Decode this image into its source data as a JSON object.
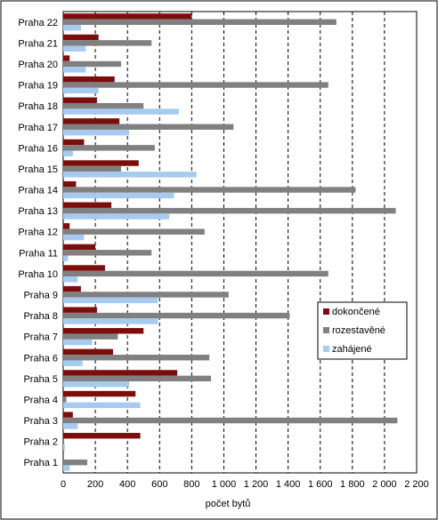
{
  "chart_data": {
    "type": "bar",
    "orientation": "horizontal",
    "title": "",
    "xlabel": "počet bytů",
    "ylabel": "",
    "xlim": [
      0,
      2200
    ],
    "xticks": [
      0,
      200,
      400,
      600,
      800,
      1000,
      1200,
      1400,
      1600,
      1800,
      2000,
      2200
    ],
    "xtick_labels": [
      "0",
      "200",
      "400",
      "600",
      "800",
      "1 000",
      "1 200",
      "1 400",
      "1 600",
      "1 800",
      "2 000",
      "2 200"
    ],
    "grid": "vertical dashed",
    "legend_position": "right",
    "categories": [
      "Praha 1",
      "Praha 2",
      "Praha 3",
      "Praha 4",
      "Praha 5",
      "Praha 6",
      "Praha 7",
      "Praha 8",
      "Praha 9",
      "Praha 10",
      "Praha 11",
      "Praha 12",
      "Praha 13",
      "Praha 14",
      "Praha 15",
      "Praha 16",
      "Praha 17",
      "Praha 18",
      "Praha 19",
      "Praha 20",
      "Praha 21",
      "Praha 22"
    ],
    "series": [
      {
        "name": "dokončené",
        "color": "#7B0D0D",
        "values": [
          0,
          480,
          60,
          450,
          710,
          310,
          500,
          210,
          110,
          260,
          200,
          40,
          300,
          80,
          470,
          130,
          350,
          210,
          320,
          40,
          220,
          800
        ]
      },
      {
        "name": "rozestavěné",
        "color": "#808080",
        "values": [
          150,
          0,
          2080,
          20,
          920,
          910,
          340,
          1410,
          1030,
          1650,
          550,
          880,
          2070,
          1820,
          360,
          570,
          1060,
          500,
          1650,
          360,
          550,
          1700
        ]
      },
      {
        "name": "zahájené",
        "color": "#A6CAF0",
        "values": [
          40,
          10,
          90,
          480,
          410,
          120,
          180,
          590,
          590,
          90,
          30,
          130,
          660,
          690,
          830,
          60,
          410,
          720,
          220,
          140,
          140,
          110
        ]
      }
    ]
  }
}
